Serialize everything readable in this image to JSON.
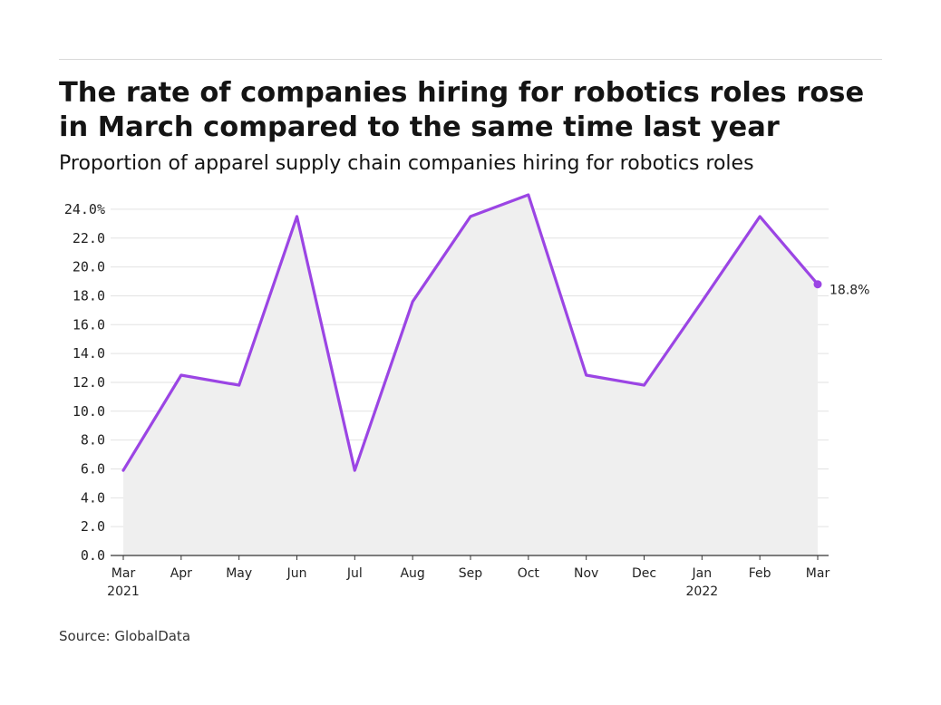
{
  "title": "The rate of companies hiring for robotics roles rose in March compared to the same time last year",
  "subtitle": "Proportion of apparel supply chain companies hiring for robotics roles",
  "source": "Source: GlobalData",
  "colors": {
    "line": "#9b45e4",
    "area": "#efefef",
    "grid": "#e2e2e2",
    "axis": "#333333"
  },
  "chart_data": {
    "type": "area",
    "title": "The rate of companies hiring for robotics roles rose in March compared to the same time last year",
    "subtitle": "Proportion of apparel supply chain companies hiring for robotics roles",
    "xlabel": "",
    "ylabel": "",
    "categories": [
      "Mar 2021",
      "Apr 2021",
      "May 2021",
      "Jun 2021",
      "Jul 2021",
      "Aug 2021",
      "Sep 2021",
      "Oct 2021",
      "Nov 2021",
      "Dec 2021",
      "Jan 2022",
      "Feb 2022",
      "Mar 2022"
    ],
    "x_tick_labels": [
      {
        "line1": "Mar",
        "line2": "2021"
      },
      {
        "line1": "Apr",
        "line2": ""
      },
      {
        "line1": "May",
        "line2": ""
      },
      {
        "line1": "Jun",
        "line2": ""
      },
      {
        "line1": "Jul",
        "line2": ""
      },
      {
        "line1": "Aug",
        "line2": ""
      },
      {
        "line1": "Sep",
        "line2": ""
      },
      {
        "line1": "Oct",
        "line2": ""
      },
      {
        "line1": "Nov",
        "line2": ""
      },
      {
        "line1": "Dec",
        "line2": ""
      },
      {
        "line1": "Jan",
        "line2": "2022"
      },
      {
        "line1": "Feb",
        "line2": ""
      },
      {
        "line1": "Mar",
        "line2": ""
      }
    ],
    "values": [
      5.9,
      12.5,
      11.8,
      23.5,
      5.9,
      17.6,
      23.5,
      25.0,
      12.5,
      11.8,
      17.6,
      23.5,
      18.8
    ],
    "ylim": [
      0,
      25
    ],
    "y_ticks": [
      0,
      2,
      4,
      6,
      8,
      10,
      12,
      14,
      16,
      18,
      20,
      22,
      24
    ],
    "y_tick_labels": [
      "0.0",
      "2.0",
      "4.0",
      "6.0",
      "8.0",
      "10.0",
      "12.0",
      "14.0",
      "16.0",
      "18.0",
      "20.0",
      "22.0",
      "24.0%"
    ],
    "end_label": "18.8%",
    "grid": true,
    "legend": "none"
  }
}
